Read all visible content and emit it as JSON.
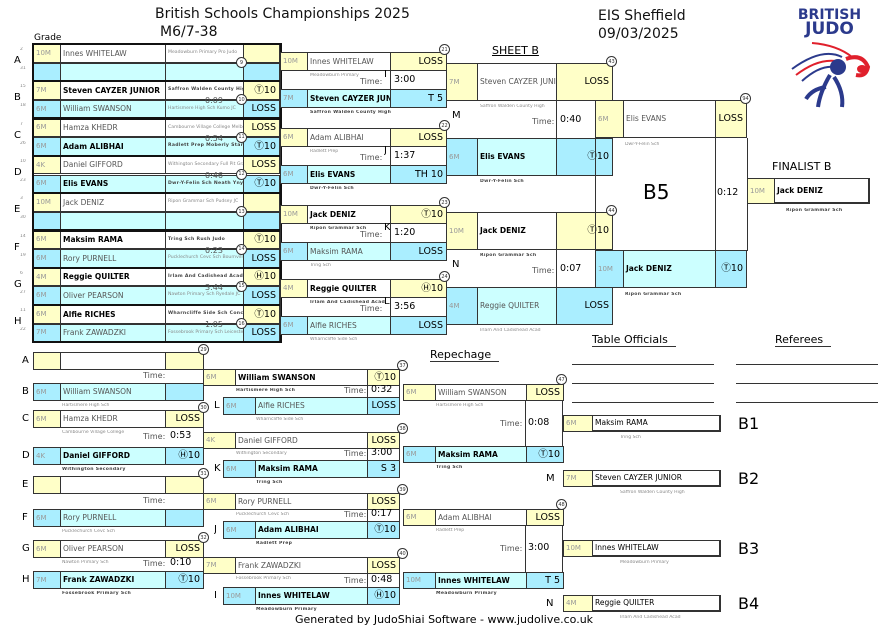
{
  "header": {
    "title": "British Schools Championships 2025",
    "category": "M6/7-38",
    "venue": "EIS Sheffield",
    "date": "09/03/2025",
    "grade_label": "Grade",
    "sheet": "SHEET B",
    "repechage": "Repechage",
    "table_officials": "Table Officials",
    "referees": "Referees",
    "footer": "Generated by JudoShiai Software - www.judolive.co.uk",
    "logo_text": [
      "BRITISH",
      "JUDO"
    ],
    "time_label": "Time:"
  },
  "colors": {
    "yellow": "#ffffc8",
    "cyan_light": "#ccffff",
    "cyan": "#aaeeff",
    "logo_blue": "#2b3a8c",
    "logo_red": "#e0202c"
  },
  "pool": [
    {
      "letter": "A",
      "match": "9",
      "time": "",
      "players": [
        {
          "seat": "2",
          "grade": "10M",
          "name": "Innes WHITELAW",
          "club": "Meadowburn Primary Pro Judo",
          "score": "",
          "winner": false
        },
        {
          "seat": "31",
          "grade": "",
          "name": "",
          "club": "",
          "score": "",
          "winner": false
        }
      ]
    },
    {
      "letter": "B",
      "match": "10",
      "time": "0:09",
      "players": [
        {
          "seat": "15",
          "grade": "7M",
          "name": "Steven CAYZER JUNIOR",
          "club": "Saffron Walden County High Stortford JK",
          "score": "Ⓣ10",
          "winner": true
        },
        {
          "seat": "18",
          "grade": "6M",
          "name": "William SWANSON",
          "club": "Hartismere High Sch Kumo JC",
          "score": "LOSS",
          "winner": false
        }
      ]
    },
    {
      "letter": "C",
      "match": "11",
      "time": "0:54",
      "players": [
        {
          "seat": "7",
          "grade": "6M",
          "name": "Hamza KHEDR",
          "club": "Cambourne Village College Melbourn",
          "score": "LOSS",
          "winner": false
        },
        {
          "seat": "26",
          "grade": "6M",
          "name": "Adam ALIBHAI",
          "club": "Radlett Prep Moberly Stars",
          "score": "Ⓣ10",
          "winner": true
        }
      ]
    },
    {
      "letter": "D",
      "match": "12",
      "time": "0:46",
      "players": [
        {
          "seat": "10",
          "grade": "4K",
          "name": "Daniel GIFFORD",
          "club": "Withington Secondary Full Pit Grapple",
          "score": "LOSS",
          "winner": false
        },
        {
          "seat": "23",
          "grade": "6M",
          "name": "Elis EVANS",
          "club": "Dwr-Y-Felin Sch Neath Ynys",
          "score": "Ⓣ10",
          "winner": true
        }
      ]
    },
    {
      "letter": "E",
      "match": "13",
      "time": "",
      "players": [
        {
          "seat": "3",
          "grade": "10M",
          "name": "Jack DENIZ",
          "club": "Ripon Grammar Sch Pudsey JC",
          "score": "",
          "winner": false
        },
        {
          "seat": "30",
          "grade": "",
          "name": "",
          "club": "",
          "score": "",
          "winner": false
        }
      ]
    },
    {
      "letter": "F",
      "match": "14",
      "time": "0:23",
      "players": [
        {
          "seat": "14",
          "grade": "6M",
          "name": "Maksim RAMA",
          "club": "Tring Sch Rush Judo",
          "score": "Ⓣ10",
          "winner": true
        },
        {
          "seat": "19",
          "grade": "6M",
          "name": "Rory PURNELL",
          "club": "Pucklechurch Cevc Sch Bournville Judo",
          "score": "LOSS",
          "winner": false
        }
      ]
    },
    {
      "letter": "G",
      "match": "15",
      "time": "3:44",
      "players": [
        {
          "seat": "6",
          "grade": "4M",
          "name": "Reggie QUILTER",
          "club": "Irlam And Cadishead Acad JA",
          "score": "Ⓗ10",
          "winner": true
        },
        {
          "seat": "27",
          "grade": "6M",
          "name": "Oliver PEARSON",
          "club": "Nawton Primary Sch Ryedale JC",
          "score": "LOSS",
          "winner": false
        }
      ]
    },
    {
      "letter": "H",
      "match": "16",
      "time": "1:05",
      "players": [
        {
          "seat": "11",
          "grade": "6M",
          "name": "Alfie RICHES",
          "club": "Wharncliffe Side Sch Concord",
          "score": "Ⓣ10",
          "winner": true
        },
        {
          "seat": "22",
          "grade": "7M",
          "name": "Frank ZAWADZKI",
          "club": "Fossebrook Primary Sch Leicester JA",
          "score": "LOSS",
          "winner": false
        }
      ]
    }
  ],
  "round2": [
    {
      "match": "21",
      "label": "I",
      "time": "3:00",
      "players": [
        {
          "grade": "10M",
          "name": "Innes WHITELAW",
          "club": "Meadowburn Primary",
          "score": "LOSS",
          "winner": false
        },
        {
          "grade": "7M",
          "name": "Steven CAYZER JUNIOR",
          "club": "Saffron Walden County High",
          "score": "T 5",
          "winner": true
        }
      ]
    },
    {
      "match": "22",
      "label": "J",
      "time": "1:37",
      "players": [
        {
          "grade": "6M",
          "name": "Adam ALIBHAI",
          "club": "Radlett Prep",
          "score": "LOSS",
          "winner": false
        },
        {
          "grade": "6M",
          "name": "Elis EVANS",
          "club": "Dwr-Y-Felin Sch",
          "score": "TH 10",
          "winner": true
        }
      ]
    },
    {
      "match": "23",
      "label": "K",
      "time": "1:20",
      "players": [
        {
          "grade": "10M",
          "name": "Jack DENIZ",
          "club": "Ripon Grammar Sch",
          "score": "Ⓣ10",
          "winner": true
        },
        {
          "grade": "6M",
          "name": "Maksim RAMA",
          "club": "Tring Sch",
          "score": "LOSS",
          "winner": false
        }
      ]
    },
    {
      "match": "24",
      "label": "L",
      "time": "3:56",
      "players": [
        {
          "grade": "4M",
          "name": "Reggie QUILTER",
          "club": "Irlam And Cadishead Acad",
          "score": "Ⓗ10",
          "winner": true
        },
        {
          "grade": "6M",
          "name": "Alfie RICHES",
          "club": "Wharncliffe Side Sch",
          "score": "LOSS",
          "winner": false
        }
      ]
    }
  ],
  "semis": [
    {
      "match": "43",
      "label": "M",
      "time": "0:40",
      "players": [
        {
          "grade": "7M",
          "name": "Steven CAYZER JUNIOR",
          "club": "Saffron Walden County High",
          "score": "LOSS",
          "winner": false
        },
        {
          "grade": "6M",
          "name": "Elis EVANS",
          "club": "Dwr-Y-Felin Sch",
          "score": "Ⓣ10",
          "winner": true
        }
      ]
    },
    {
      "match": "44",
      "label": "N",
      "time": "0:07",
      "players": [
        {
          "grade": "10M",
          "name": "Jack DENIZ",
          "club": "Ripon Grammar Sch",
          "score": "Ⓣ10",
          "winner": true
        },
        {
          "grade": "4M",
          "name": "Reggie QUILTER",
          "club": "Irlam And Cadishead Acad",
          "score": "LOSS",
          "winner": false
        }
      ]
    }
  ],
  "final": {
    "match": "94",
    "label": "B5",
    "time": "0:12",
    "players": [
      {
        "grade": "6M",
        "name": "Elis EVANS",
        "club": "Dwr-Y-Felin Sch",
        "score": "LOSS",
        "winner": false
      },
      {
        "grade": "10M",
        "name": "Jack DENIZ",
        "club": "Ripon Grammar Sch",
        "score": "Ⓣ10",
        "winner": true
      }
    ]
  },
  "finalist": {
    "title": "FINALIST B",
    "grade": "10M",
    "name": "Jack DENIZ",
    "club": "Ripon Grammar Sch"
  },
  "rep1": [
    {
      "match": "29",
      "time": "",
      "players": [
        {
          "letter": "A",
          "grade": "",
          "name": "",
          "club": "",
          "score": "",
          "winner": false
        },
        {
          "letter": "B",
          "grade": "6M",
          "name": "William SWANSON",
          "club": "Hartismere High Sch",
          "score": "",
          "winner": false
        }
      ]
    },
    {
      "match": "30",
      "time": "0:53",
      "players": [
        {
          "letter": "C",
          "grade": "6M",
          "name": "Hamza KHEDR",
          "club": "Cambourne Village College",
          "score": "LOSS",
          "winner": false
        },
        {
          "letter": "D",
          "grade": "4K",
          "name": "Daniel GIFFORD",
          "club": "Withington Secondary",
          "score": "Ⓗ10",
          "winner": true
        }
      ]
    },
    {
      "match": "31",
      "time": "",
      "players": [
        {
          "letter": "E",
          "grade": "",
          "name": "",
          "club": "",
          "score": "",
          "winner": false
        },
        {
          "letter": "F",
          "grade": "6M",
          "name": "Rory PURNELL",
          "club": "Pucklechurch Cevc Sch",
          "score": "",
          "winner": false
        }
      ]
    },
    {
      "match": "32",
      "time": "0:10",
      "players": [
        {
          "letter": "G",
          "grade": "6M",
          "name": "Oliver PEARSON",
          "club": "Nawton Primary Sch",
          "score": "LOSS",
          "winner": false
        },
        {
          "letter": "H",
          "grade": "7M",
          "name": "Frank ZAWADZKI",
          "club": "Fossebrook Primary Sch",
          "score": "Ⓣ10",
          "winner": true
        }
      ]
    }
  ],
  "rep2": [
    {
      "match": "37",
      "time": "0:32",
      "players": [
        {
          "letter": "",
          "grade": "6M",
          "name": "William SWANSON",
          "club": "Hartismere High Sch",
          "score": "Ⓣ10",
          "winner": true
        },
        {
          "letter": "L",
          "grade": "6M",
          "name": "Alfie RICHES",
          "club": "Wharncliffe Side Sch",
          "score": "LOSS",
          "winner": false
        }
      ]
    },
    {
      "match": "38",
      "time": "3:00",
      "players": [
        {
          "letter": "",
          "grade": "4K",
          "name": "Daniel GIFFORD",
          "club": "Withington Secondary",
          "score": "LOSS",
          "winner": false
        },
        {
          "letter": "K",
          "grade": "6M",
          "name": "Maksim RAMA",
          "club": "Tring Sch",
          "score": "S 3",
          "winner": true
        }
      ]
    },
    {
      "match": "39",
      "time": "0:17",
      "players": [
        {
          "letter": "",
          "grade": "6M",
          "name": "Rory PURNELL",
          "club": "Pucklechurch Cevc Sch",
          "score": "LOSS",
          "winner": false
        },
        {
          "letter": "J",
          "grade": "6M",
          "name": "Adam ALIBHAI",
          "club": "Radlett Prep",
          "score": "Ⓣ10",
          "winner": true
        }
      ]
    },
    {
      "match": "40",
      "time": "0:48",
      "players": [
        {
          "letter": "",
          "grade": "7M",
          "name": "Frank ZAWADZKI",
          "club": "Fossebrook Primary Sch",
          "score": "LOSS",
          "winner": false
        },
        {
          "letter": "I",
          "grade": "10M",
          "name": "Innes WHITELAW",
          "club": "Meadowburn Primary",
          "score": "Ⓗ10",
          "winner": true
        }
      ]
    }
  ],
  "rep3": [
    {
      "match": "47",
      "time": "0:08",
      "players": [
        {
          "grade": "6M",
          "name": "William SWANSON",
          "club": "Hartismere High Sch",
          "score": "LOSS",
          "winner": false
        },
        {
          "grade": "6M",
          "name": "Maksim RAMA",
          "club": "Tring Sch",
          "score": "Ⓣ10",
          "winner": true
        }
      ]
    },
    {
      "match": "48",
      "time": "3:00",
      "players": [
        {
          "grade": "6M",
          "name": "Adam ALIBHAI",
          "club": "Radlett Prep",
          "score": "LOSS",
          "winner": false
        },
        {
          "grade": "10M",
          "name": "Innes WHITELAW",
          "club": "Meadowburn Primary",
          "score": "T 5",
          "winner": true
        }
      ]
    }
  ],
  "results": [
    {
      "place": "B1",
      "from": "",
      "grade": "6M",
      "name": "Maksim RAMA",
      "club": "Tring Sch"
    },
    {
      "place": "B2",
      "from": "M",
      "grade": "7M",
      "name": "Steven CAYZER JUNIOR",
      "club": "Saffron Walden County High"
    },
    {
      "place": "B3",
      "from": "",
      "grade": "10M",
      "name": "Innes WHITELAW",
      "club": "Meadowburn Primary"
    },
    {
      "place": "B4",
      "from": "N",
      "grade": "4M",
      "name": "Reggie QUILTER",
      "club": "Irlam And Cadishead Acad"
    }
  ]
}
